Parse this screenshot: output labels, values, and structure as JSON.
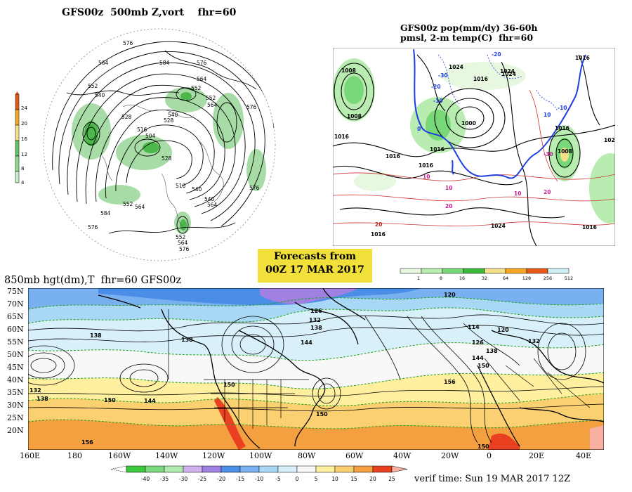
{
  "panels": {
    "upper_left": {
      "title": "GFS00z  500mb Z,vort    fhr=60",
      "colorbar": {
        "ticks": [
          "24",
          "20",
          "16",
          "12",
          "8",
          "4"
        ],
        "colors": [
          "#e05a1c",
          "#f5a623",
          "#f2e08a",
          "#62c462",
          "#8fd68f",
          "#c8ecc8"
        ]
      },
      "contour_labels": [
        "576",
        "564",
        "552",
        "540",
        "528",
        "504",
        "516",
        "528",
        "540",
        "552",
        "564",
        "576",
        "552",
        "564",
        "576",
        "584",
        "576",
        "564",
        "552",
        "540",
        "516",
        "564",
        "540",
        "528",
        "552",
        "564",
        "576",
        "584",
        "576"
      ]
    },
    "upper_right": {
      "title_line1": "GFS00z pop(mm/dy) 36-60h",
      "title_line2": "pmsl, 2-m temp(C)  fhr=60",
      "labels": [
        "1008",
        "1008",
        "1016",
        "1016",
        "1016",
        "1000",
        "1024",
        "1016",
        "1008",
        "1024",
        "1016",
        "1016",
        "1024",
        "1016",
        "1024",
        "1016",
        "1016",
        "20",
        "-30",
        "-20",
        "-10",
        "0",
        "10",
        "10",
        "10",
        "20",
        "10",
        "-10",
        "-20",
        "-30",
        "20",
        "102"
      ],
      "colorbar": {
        "ticks": [
          "1",
          "8",
          "16",
          "32",
          "64",
          "128",
          "256",
          "512"
        ],
        "colors": [
          "#e8f8e0",
          "#b8ecb0",
          "#78d878",
          "#3cb83c",
          "#f2e08a",
          "#f5a623",
          "#e85a1c",
          "#cfeff5"
        ]
      }
    },
    "banner": {
      "line1": "Forecasts from",
      "line2": "00Z 17 MAR 2017"
    },
    "bottom": {
      "title": "850mb hgt(dm),T  fhr=60 GFS00z",
      "lat_labels": [
        "75N",
        "70N",
        "65N",
        "60N",
        "55N",
        "50N",
        "45N",
        "40N",
        "35N",
        "30N",
        "25N",
        "20N"
      ],
      "lon_labels": [
        "160E",
        "180",
        "160W",
        "140W",
        "120W",
        "100W",
        "80W",
        "60W",
        "40W",
        "20W",
        "0",
        "20E",
        "40E"
      ],
      "contour_labels": [
        "138",
        "138",
        "132",
        "138",
        "144",
        "150",
        "144",
        "150",
        "156",
        "126",
        "132",
        "138",
        "114",
        "120",
        "126",
        "132",
        "138",
        "144",
        "150",
        "156",
        "150",
        "150",
        "120"
      ],
      "colorbar": {
        "ticks": [
          "-40",
          "-35",
          "-30",
          "-25",
          "-20",
          "-15",
          "-10",
          "-5",
          "0",
          "5",
          "10",
          "15",
          "20",
          "25"
        ],
        "colors": [
          "#3cc83c",
          "#7cd87c",
          "#b0ecb0",
          "#d0b0f0",
          "#a080e0",
          "#4a8ee8",
          "#78b0f0",
          "#a8d8f5",
          "#d8f0fa",
          "#f8f8f8",
          "#fff0a0",
          "#fbd070",
          "#f5a040",
          "#e84020",
          "#f8b0a0"
        ]
      }
    },
    "verif_time": "verif time: Sun 19 MAR 2017 12Z"
  }
}
